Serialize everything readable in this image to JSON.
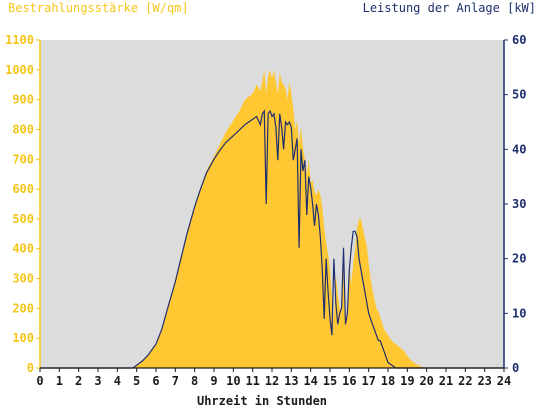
{
  "chart_data": {
    "type": "area",
    "ylabel_left": "Bestrahlungsstärke [W/qm]",
    "ylabel_right": "Leistung der Anlage [kW]",
    "xlabel": "Uhrzeit in Stunden",
    "xlim": [
      0,
      24
    ],
    "ylim_left": [
      0,
      1100
    ],
    "ylim_right": [
      0,
      60
    ],
    "x_ticks": [
      "0",
      "1",
      "2",
      "3",
      "4",
      "5",
      "6",
      "7",
      "8",
      "9",
      "10",
      "11",
      "12",
      "13",
      "14",
      "15",
      "16",
      "17",
      "18",
      "19",
      "20",
      "21",
      "22",
      "23",
      "24"
    ],
    "y_ticks_left": [
      "0",
      "100",
      "200",
      "300",
      "400",
      "500",
      "600",
      "700",
      "800",
      "900",
      "1000",
      "1100"
    ],
    "y_ticks_right": [
      "0",
      "10",
      "20",
      "30",
      "40",
      "50",
      "60"
    ],
    "grid": false,
    "colors": {
      "plot_bg": "#dcdcdc",
      "irradiance": "#ffc832",
      "power": "#1f2f6e",
      "left_axis": "#f5c518",
      "right_axis": "#1f2f6e"
    },
    "series": [
      {
        "axis": "left",
        "x": [
          0,
          4.8,
          5.0,
          5.3,
          5.6,
          6.0,
          6.3,
          6.6,
          7.0,
          7.3,
          7.6,
          8.0,
          8.3,
          8.6,
          9.0,
          9.3,
          9.6,
          10.0,
          10.3,
          10.6,
          11.0,
          11.2,
          11.4,
          11.5,
          11.6,
          11.7,
          11.8,
          11.9,
          12.0,
          12.1,
          12.2,
          12.3,
          12.4,
          12.5,
          12.6,
          12.7,
          12.8,
          12.9,
          13.0,
          13.1,
          13.2,
          13.3,
          13.4,
          13.5,
          13.6,
          13.7,
          13.8,
          13.9,
          14.0,
          14.1,
          14.2,
          14.3,
          14.4,
          14.5,
          14.6,
          14.7,
          14.8,
          14.9,
          15.0,
          15.1,
          15.2,
          15.3,
          15.4,
          15.5,
          15.6,
          15.7,
          15.8,
          15.9,
          16.0,
          16.1,
          16.2,
          16.3,
          16.4,
          16.5,
          16.6,
          16.7,
          16.8,
          16.9,
          17.0,
          17.1,
          17.2,
          17.3,
          17.4,
          17.5,
          17.6,
          17.7,
          17.8,
          17.9,
          18.0,
          18.2,
          18.4,
          18.6,
          18.8,
          19.0,
          19.2,
          19.4,
          19.6,
          19.8,
          20.0,
          20.2,
          20.5,
          24
        ],
        "values": [
          0,
          0,
          10,
          25,
          45,
          80,
          130,
          200,
          290,
          370,
          450,
          540,
          600,
          660,
          710,
          750,
          790,
          830,
          860,
          900,
          920,
          950,
          930,
          960,
          1000,
          920,
          980,
          1000,
          970,
          1000,
          960,
          920,
          990,
          960,
          950,
          940,
          900,
          960,
          920,
          870,
          800,
          830,
          750,
          810,
          740,
          700,
          650,
          700,
          620,
          630,
          590,
          580,
          600,
          580,
          540,
          470,
          420,
          380,
          330,
          240,
          160,
          310,
          250,
          200,
          190,
          420,
          170,
          170,
          350,
          280,
          350,
          400,
          470,
          500,
          500,
          470,
          440,
          410,
          350,
          300,
          260,
          230,
          200,
          190,
          170,
          150,
          130,
          120,
          110,
          90,
          80,
          70,
          60,
          40,
          25,
          15,
          8,
          3,
          0,
          0,
          0,
          0
        ]
      },
      {
        "axis": "right",
        "x": [
          0,
          4.8,
          5.0,
          5.3,
          5.6,
          6.0,
          6.3,
          6.6,
          7.0,
          7.3,
          7.6,
          8.0,
          8.3,
          8.6,
          9.0,
          9.3,
          9.6,
          10.0,
          10.3,
          10.6,
          11.0,
          11.2,
          11.4,
          11.5,
          11.6,
          11.7,
          11.8,
          11.9,
          12.0,
          12.1,
          12.2,
          12.3,
          12.4,
          12.5,
          12.6,
          12.7,
          12.8,
          12.9,
          13.0,
          13.1,
          13.2,
          13.3,
          13.4,
          13.5,
          13.6,
          13.7,
          13.8,
          13.9,
          14.0,
          14.1,
          14.2,
          14.3,
          14.4,
          14.5,
          14.6,
          14.7,
          14.8,
          14.9,
          15.0,
          15.1,
          15.2,
          15.3,
          15.4,
          15.5,
          15.6,
          15.7,
          15.8,
          15.9,
          16.0,
          16.1,
          16.2,
          16.3,
          16.4,
          16.5,
          16.6,
          16.7,
          16.8,
          16.9,
          17.0,
          17.1,
          17.2,
          17.3,
          17.4,
          17.5,
          17.6,
          17.7,
          17.8,
          17.9,
          18.0,
          18.2,
          18.4,
          18.6,
          18.8,
          19.0,
          19.2,
          19.4,
          19.6,
          19.8,
          20.0,
          20.2,
          20.5,
          24
        ],
        "values": [
          0,
          0,
          0.5,
          1.3,
          2.4,
          4.4,
          7.1,
          10.9,
          15.8,
          20.2,
          24.5,
          29.5,
          32.7,
          35.6,
          38.2,
          39.8,
          41.2,
          42.5,
          43.5,
          44.5,
          45.5,
          46.0,
          44.5,
          46.5,
          47.0,
          30.0,
          46.5,
          47.0,
          46.0,
          46.5,
          44.0,
          38.0,
          46.5,
          44.0,
          40.0,
          45.0,
          44.5,
          45.0,
          44.0,
          38.0,
          40.0,
          42.0,
          22.0,
          40.0,
          36.0,
          38.0,
          28.0,
          35.0,
          33.0,
          30.0,
          26.0,
          30.0,
          28.0,
          24.0,
          18.0,
          9.0,
          20.0,
          14.0,
          9.0,
          6.0,
          20.0,
          12.0,
          8.0,
          10.0,
          11.0,
          22.0,
          8.0,
          10.0,
          18.0,
          22.0,
          25.0,
          25.0,
          24.0,
          20.0,
          18.0,
          16.0,
          14.0,
          12.0,
          10.0,
          9.0,
          8.0,
          7.0,
          6.0,
          5.0,
          5.0,
          4.0,
          3.0,
          2.0,
          1.0,
          0.5,
          0,
          0,
          0,
          0,
          0,
          0,
          0,
          0,
          0,
          0,
          0,
          0
        ]
      }
    ]
  }
}
